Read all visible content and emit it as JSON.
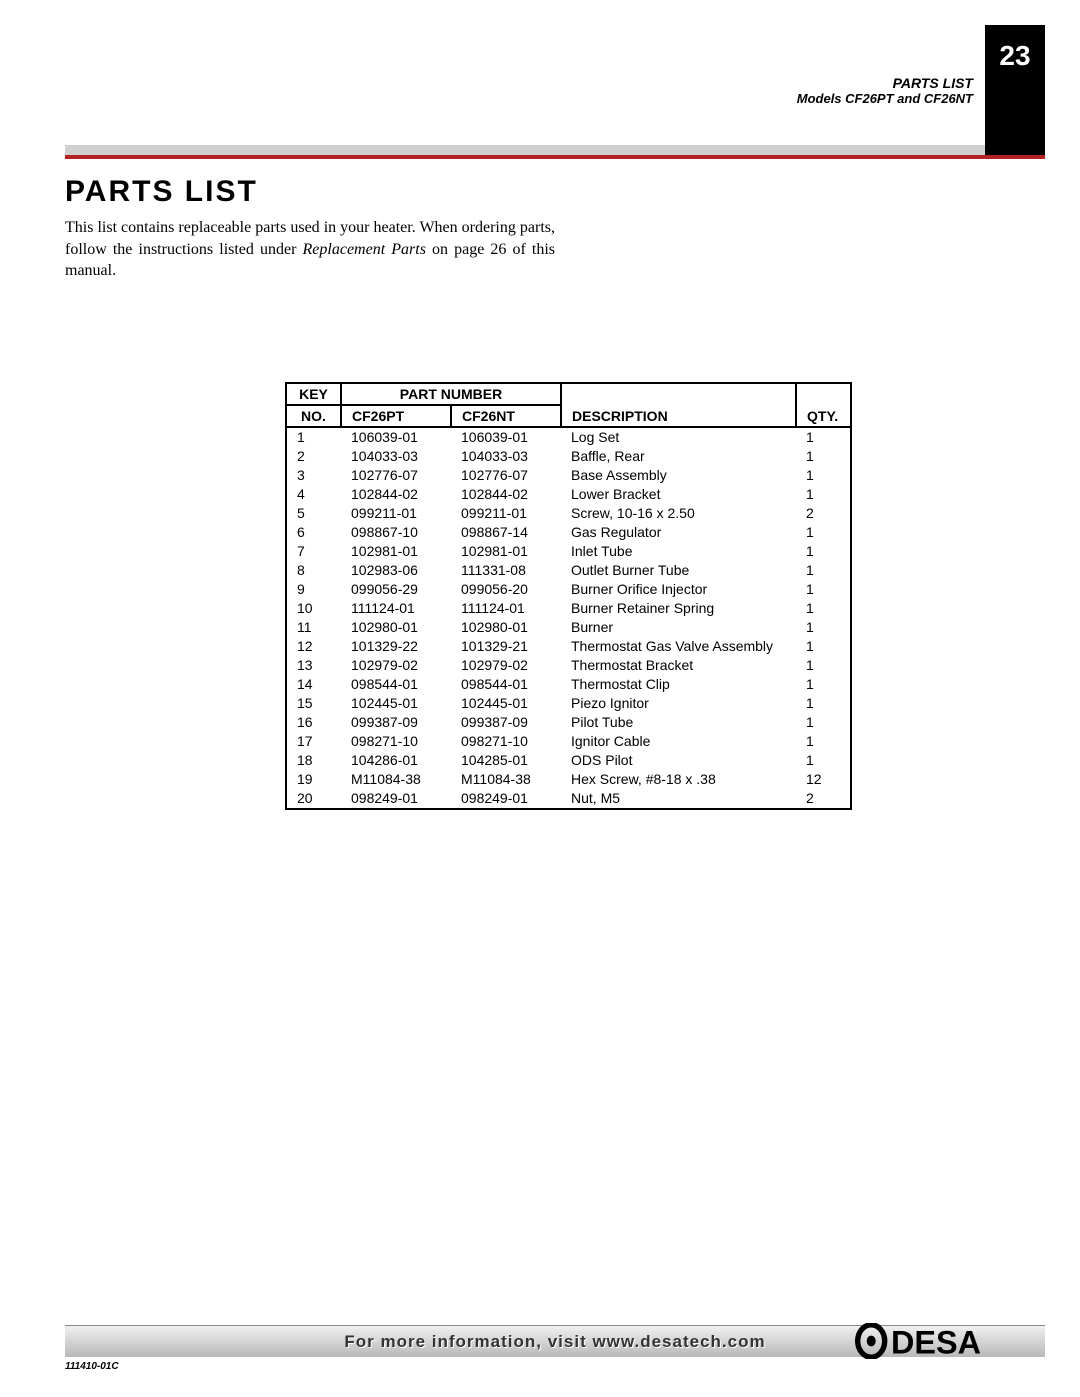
{
  "header": {
    "parts_list_label": "PARTS LIST",
    "models_label": "Models CF26PT and CF26NT",
    "page_number": "23"
  },
  "section": {
    "title": "PARTS LIST",
    "intro_1": "This list contains replaceable parts used in your heater. When ordering parts, follow the instructions listed under ",
    "intro_italic": "Replacement Parts",
    "intro_2": " on page 26 of this manual."
  },
  "table": {
    "headers": {
      "key": "KEY",
      "no": "NO.",
      "part_number": "PART NUMBER",
      "cf26pt": "CF26PT",
      "cf26nt": "CF26NT",
      "description": "DESCRIPTION",
      "qty": "QTY."
    },
    "rows": [
      {
        "key": "1",
        "pt": "106039-01",
        "nt": "106039-01",
        "desc": "Log Set",
        "qty": "1"
      },
      {
        "key": "2",
        "pt": "104033-03",
        "nt": "104033-03",
        "desc": "Baffle, Rear",
        "qty": "1"
      },
      {
        "key": "3",
        "pt": "102776-07",
        "nt": "102776-07",
        "desc": "Base Assembly",
        "qty": "1"
      },
      {
        "key": "4",
        "pt": "102844-02",
        "nt": "102844-02",
        "desc": "Lower Bracket",
        "qty": "1"
      },
      {
        "key": "5",
        "pt": "099211-01",
        "nt": "099211-01",
        "desc": "Screw, 10-16 x 2.50",
        "qty": "2"
      },
      {
        "key": "6",
        "pt": "098867-10",
        "nt": "098867-14",
        "desc": "Gas Regulator",
        "qty": "1"
      },
      {
        "key": "7",
        "pt": "102981-01",
        "nt": "102981-01",
        "desc": "Inlet Tube",
        "qty": "1"
      },
      {
        "key": "8",
        "pt": "102983-06",
        "nt": "111331-08",
        "desc": "Outlet Burner Tube",
        "qty": "1"
      },
      {
        "key": "9",
        "pt": "099056-29",
        "nt": "099056-20",
        "desc": "Burner Orifice Injector",
        "qty": "1"
      },
      {
        "key": "10",
        "pt": "111124-01",
        "nt": "111124-01",
        "desc": "Burner Retainer Spring",
        "qty": "1"
      },
      {
        "key": "11",
        "pt": "102980-01",
        "nt": "102980-01",
        "desc": "Burner",
        "qty": "1"
      },
      {
        "key": "12",
        "pt": "101329-22",
        "nt": "101329-21",
        "desc": "Thermostat Gas Valve Assembly",
        "qty": "1"
      },
      {
        "key": "13",
        "pt": "102979-02",
        "nt": "102979-02",
        "desc": "Thermostat Bracket",
        "qty": "1"
      },
      {
        "key": "14",
        "pt": "098544-01",
        "nt": "098544-01",
        "desc": "Thermostat Clip",
        "qty": "1"
      },
      {
        "key": "15",
        "pt": "102445-01",
        "nt": "102445-01",
        "desc": "Piezo Ignitor",
        "qty": "1"
      },
      {
        "key": "16",
        "pt": "099387-09",
        "nt": "099387-09",
        "desc": "Pilot Tube",
        "qty": "1"
      },
      {
        "key": "17",
        "pt": "098271-10",
        "nt": "098271-10",
        "desc": "Ignitor Cable",
        "qty": "1"
      },
      {
        "key": "18",
        "pt": "104286-01",
        "nt": "104285-01",
        "desc": "ODS Pilot",
        "qty": "1"
      },
      {
        "key": "19",
        "pt": "M11084-38",
        "nt": "M11084-38",
        "desc": "Hex Screw, #8-18 x .38",
        "qty": "12"
      },
      {
        "key": "20",
        "pt": "098249-01",
        "nt": "098249-01",
        "desc": "Nut, M5",
        "qty": "2"
      }
    ]
  },
  "footer": {
    "info_text": "For more information, visit www.desatech.com",
    "brand": "DESA",
    "doc_id": "111410-01C"
  },
  "colors": {
    "red_bar": "#b22222",
    "page_box_bg": "#000000",
    "page_box_fg": "#ffffff",
    "footer_gradient_start": "#f0f0f0",
    "footer_gradient_end": "#b8b8b8"
  }
}
